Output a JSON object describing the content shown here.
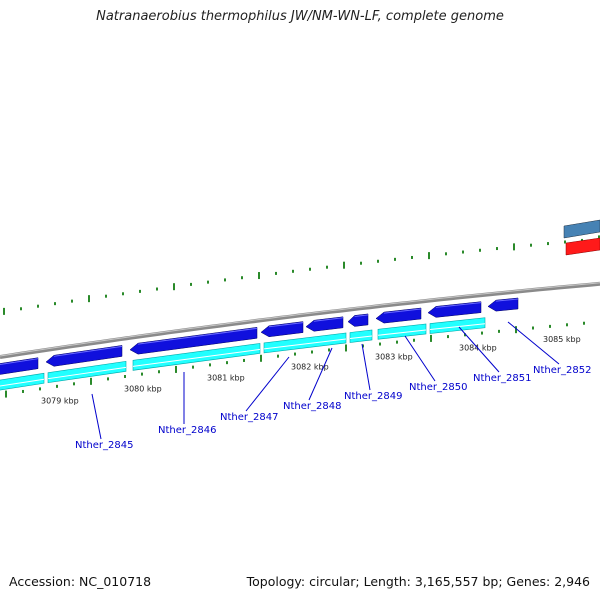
{
  "title": "Natranaerobius thermophilus JW/NM-WN-LF, complete genome",
  "accession": "Accession: NC_010718",
  "topology": "Topology: circular; Length: 3,165,557 bp; Genes: 2,946",
  "colors": {
    "backbone": "#8a8a8a",
    "forward_cds": "#1010dd",
    "cds_band": "#22ffff",
    "gc_ticks": "#2a8a2a",
    "gene_label": "#0000cc",
    "upper_gene": "#4682b4",
    "upper_red": "#ff1a1a"
  },
  "kbp_ticks": [
    "3079 kbp",
    "3080 kbp",
    "3081 kbp",
    "3082 kbp",
    "3083 kbp",
    "3084 kbp",
    "3085 kbp"
  ],
  "genes": [
    "Nther_2845",
    "Nther_2846",
    "Nther_2847",
    "Nther_2848",
    "Nther_2849",
    "Nther_2850",
    "Nther_2851",
    "Nther_2852"
  ]
}
